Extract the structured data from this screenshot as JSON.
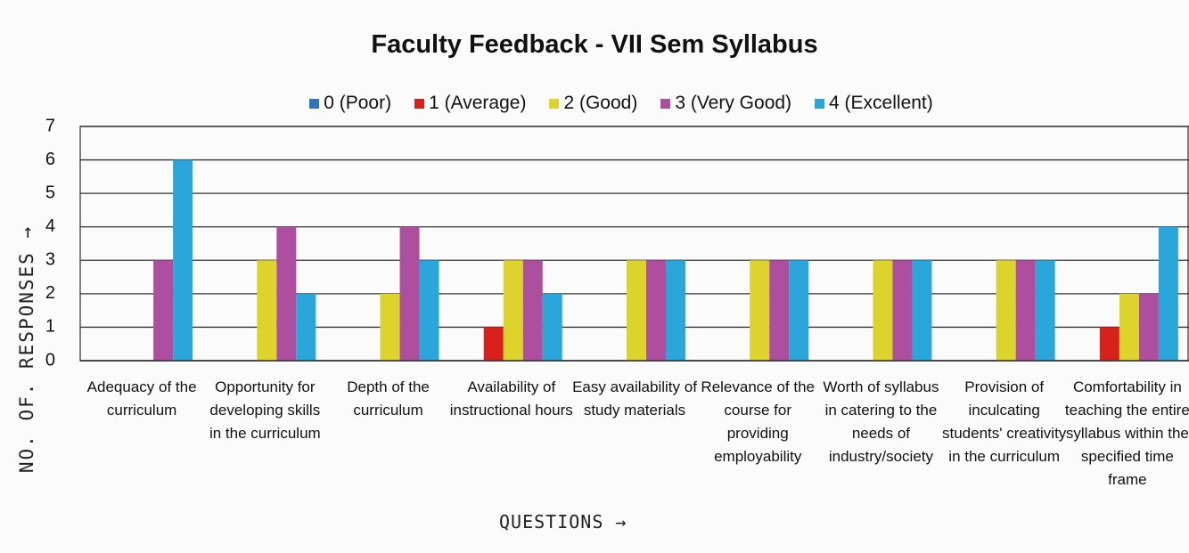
{
  "chart_data": {
    "type": "bar",
    "title": "Faculty Feedback - VII Sem Syllabus",
    "y_axis_label": "NO. OF. RESPONSES →",
    "x_axis_label": "QUESTIONS →",
    "categories": [
      "Adequacy of the curriculum",
      "Opportunity for developing skills in the curriculum",
      "Depth of the curriculum",
      "Availability of instructional hours",
      "Easy availability of study materials",
      "Relevance of the course for providing employability",
      "Worth of syllabus in catering to the needs of industry/society",
      "Provision of inculcating students' creativity in the curriculum",
      "Comfortability in teaching the entire syllabus within the specified time frame"
    ],
    "series": [
      {
        "name": "0 (Poor)",
        "color": "#2e72c4",
        "values": [
          0,
          0,
          0,
          0,
          0,
          0,
          0,
          0,
          0
        ]
      },
      {
        "name": "1 (Average)",
        "color": "#d8201c",
        "values": [
          0,
          0,
          0,
          1,
          0,
          0,
          0,
          0,
          1
        ]
      },
      {
        "name": "2 (Good)",
        "color": "#dcd42c",
        "values": [
          0,
          3,
          2,
          3,
          3,
          3,
          3,
          3,
          2
        ]
      },
      {
        "name": "3 (Very Good)",
        "color": "#ae4e9e",
        "values": [
          3,
          4,
          4,
          3,
          3,
          3,
          3,
          3,
          2
        ]
      },
      {
        "name": "4 (Excellent)",
        "color": "#2ba6da",
        "values": [
          6,
          2,
          3,
          2,
          3,
          3,
          3,
          3,
          4
        ]
      }
    ],
    "ylim": [
      0,
      7
    ],
    "yticks": [
      0,
      1,
      2,
      3,
      4,
      5,
      6,
      7
    ],
    "grid": true,
    "legend": "top"
  }
}
